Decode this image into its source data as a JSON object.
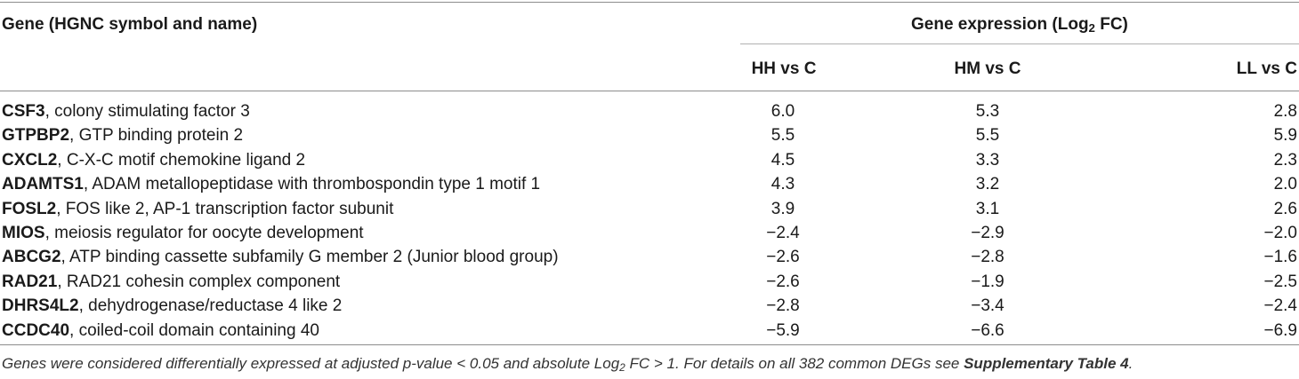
{
  "header": {
    "gene_col": "Gene (HGNC symbol and name)",
    "expr_group_prefix": "Gene expression (Log",
    "expr_group_sub": "2",
    "expr_group_suffix": " FC)",
    "col_hh": "HH vs C",
    "col_hm": "HM vs C",
    "col_ll": "LL vs C"
  },
  "rows": [
    {
      "symbol": "CSF3",
      "name": ", colony stimulating factor 3",
      "hh": "6.0",
      "hm": "5.3",
      "ll": "2.8"
    },
    {
      "symbol": "GTPBP2",
      "name": ", GTP binding protein 2",
      "hh": "5.5",
      "hm": "5.5",
      "ll": "5.9"
    },
    {
      "symbol": "CXCL2",
      "name": ", C-X-C motif chemokine ligand 2",
      "hh": "4.5",
      "hm": "3.3",
      "ll": "2.3"
    },
    {
      "symbol": "ADAMTS1",
      "name": ", ADAM metallopeptidase with thrombospondin type 1 motif 1",
      "hh": "4.3",
      "hm": "3.2",
      "ll": "2.0"
    },
    {
      "symbol": "FOSL2",
      "name": ", FOS like 2, AP-1 transcription factor subunit",
      "hh": "3.9",
      "hm": "3.1",
      "ll": "2.6"
    },
    {
      "symbol": "MIOS",
      "name": ", meiosis regulator for oocyte development",
      "hh": "−2.4",
      "hm": "−2.9",
      "ll": "−2.0"
    },
    {
      "symbol": "ABCG2",
      "name": ", ATP binding cassette subfamily G member 2 (Junior blood group)",
      "hh": "−2.6",
      "hm": "−2.8",
      "ll": "−1.6"
    },
    {
      "symbol": "RAD21",
      "name": ", RAD21 cohesin complex component",
      "hh": "−2.6",
      "hm": "−1.9",
      "ll": "−2.5"
    },
    {
      "symbol": "DHRS4L2",
      "name": ", dehydrogenase/reductase 4 like 2",
      "hh": "−2.8",
      "hm": "−3.4",
      "ll": "−2.4"
    },
    {
      "symbol": "CCDC40",
      "name": ", coiled-coil domain containing 40",
      "hh": "−5.9",
      "hm": "−6.6",
      "ll": "−6.9"
    }
  ],
  "footnote": {
    "part1": "Genes were considered differentially expressed at adjusted p-value < 0.05 and absolute Log",
    "sub": "2",
    "part2": " FC > 1. For details on all 382 common DEGs see ",
    "link": "Supplementary Table 4",
    "part3": "."
  }
}
